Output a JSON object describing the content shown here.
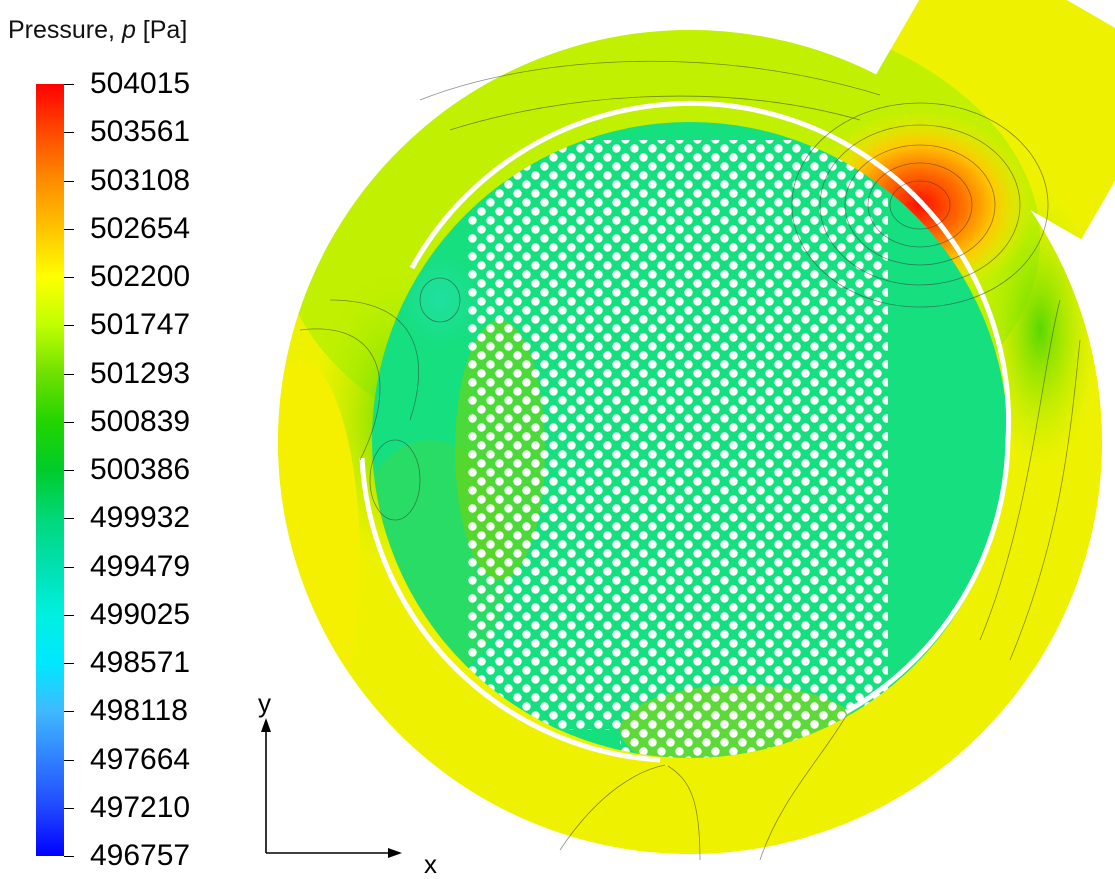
{
  "legend": {
    "title_prefix": "Pressure, ",
    "title_symbol": "p",
    "title_unit": " [Pa]",
    "ticks": [
      "504015",
      "503561",
      "503108",
      "502654",
      "502200",
      "501747",
      "501293",
      "500839",
      "500386",
      "499932",
      "499479",
      "499025",
      "498571",
      "498118",
      "497664",
      "497210",
      "496757"
    ],
    "colors": [
      "#ff0000",
      "#ff4a00",
      "#ff8c00",
      "#ffc400",
      "#ffff00",
      "#bfff00",
      "#6fe000",
      "#22d400",
      "#00cc2a",
      "#00d87a",
      "#00e0b0",
      "#00f0e0",
      "#00e8ff",
      "#40b8ff",
      "#3080ff",
      "#2048ff",
      "#0000ff"
    ]
  },
  "axes": {
    "x_label": "x",
    "y_label": "y"
  },
  "colors": {
    "outer_ring": "#f2f000",
    "inner_disk": "#17e07e",
    "hot_spot": "#ff2000",
    "green_zone": "#8ee800"
  }
}
